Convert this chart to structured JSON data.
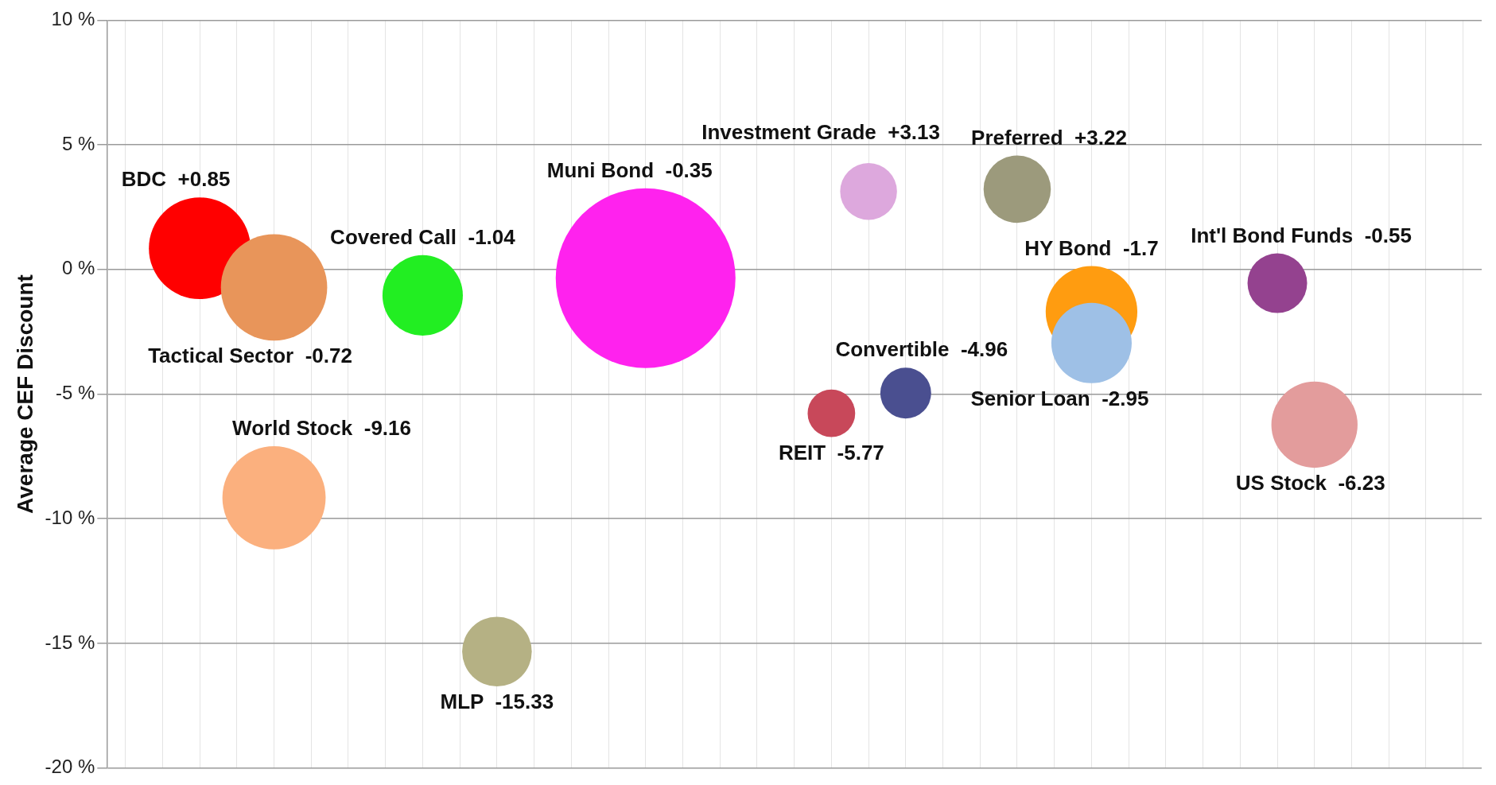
{
  "chart_data": {
    "type": "bubble",
    "ylabel": "Average CEF Discount",
    "categories": [
      null,
      null,
      null,
      null,
      null,
      null,
      null,
      null,
      null,
      null,
      null,
      null,
      null,
      null,
      null,
      null,
      null,
      null,
      null,
      null,
      null,
      null,
      null,
      null,
      null,
      null,
      null,
      null,
      null,
      null,
      null,
      null,
      null,
      null,
      null,
      null,
      null
    ],
    "ylim": [
      -20,
      10
    ],
    "yticks": [
      {
        "value": -20,
        "label": "-20 %"
      },
      {
        "value": -15,
        "label": "-15 %"
      },
      {
        "value": -10,
        "label": "-10 %"
      },
      {
        "value": -5,
        "label": "-5 %"
      },
      {
        "value": 0,
        "label": "0 %"
      },
      {
        "value": 5,
        "label": "5 %"
      },
      {
        "value": 10,
        "label": "10 %"
      }
    ],
    "grid": true,
    "tick_labels": "y",
    "legend": false,
    "series": [
      {
        "name": "BDC",
        "color": "#ff0000",
        "values": [
          null,
          null,
          0.85,
          null,
          null,
          null,
          null,
          null,
          null,
          null,
          null,
          null,
          null,
          null,
          null,
          null,
          null,
          null,
          null,
          null,
          null,
          null,
          null,
          null,
          null,
          null,
          null,
          null,
          null,
          null,
          null,
          null,
          null,
          null,
          null,
          null,
          null
        ],
        "sizes": [
          null,
          null,
          0.32,
          null,
          null,
          null,
          null,
          null,
          null,
          null,
          null,
          null,
          null,
          null,
          null,
          null,
          null,
          null,
          null,
          null,
          null,
          null,
          null,
          null,
          null,
          null,
          null,
          null,
          null,
          null,
          null,
          null,
          null,
          null,
          null,
          null,
          null
        ],
        "value_labels": [
          null,
          null,
          "+0.85",
          null,
          null,
          null,
          null,
          null,
          null,
          null,
          null,
          null,
          null,
          null,
          null,
          null,
          null,
          null,
          null,
          null,
          null,
          null,
          null,
          null,
          null,
          null,
          null,
          null,
          null,
          null,
          null,
          null,
          null,
          null,
          null,
          null,
          null
        ]
      },
      {
        "name": "Tactical Sector",
        "color": "#e8955a",
        "values": [
          null,
          null,
          null,
          null,
          -0.72,
          null,
          null,
          null,
          null,
          null,
          null,
          null,
          null,
          null,
          null,
          null,
          null,
          null,
          null,
          null,
          null,
          null,
          null,
          null,
          null,
          null,
          null,
          null,
          null,
          null,
          null,
          null,
          null,
          null,
          null,
          null,
          null
        ],
        "sizes": [
          null,
          null,
          null,
          null,
          0.35,
          null,
          null,
          null,
          null,
          null,
          null,
          null,
          null,
          null,
          null,
          null,
          null,
          null,
          null,
          null,
          null,
          null,
          null,
          null,
          null,
          null,
          null,
          null,
          null,
          null,
          null,
          null,
          null,
          null,
          null,
          null,
          null
        ],
        "value_labels": [
          null,
          null,
          null,
          null,
          "-0.72",
          null,
          null,
          null,
          null,
          null,
          null,
          null,
          null,
          null,
          null,
          null,
          null,
          null,
          null,
          null,
          null,
          null,
          null,
          null,
          null,
          null,
          null,
          null,
          null,
          null,
          null,
          null,
          null,
          null,
          null,
          null,
          null
        ]
      },
      {
        "name": "World Stock",
        "color": "#fbb07e",
        "values": [
          null,
          null,
          null,
          null,
          -9.16,
          null,
          null,
          null,
          null,
          null,
          null,
          null,
          null,
          null,
          null,
          null,
          null,
          null,
          null,
          null,
          null,
          null,
          null,
          null,
          null,
          null,
          null,
          null,
          null,
          null,
          null,
          null,
          null,
          null,
          null,
          null,
          null
        ],
        "sizes": [
          null,
          null,
          null,
          null,
          0.33,
          null,
          null,
          null,
          null,
          null,
          null,
          null,
          null,
          null,
          null,
          null,
          null,
          null,
          null,
          null,
          null,
          null,
          null,
          null,
          null,
          null,
          null,
          null,
          null,
          null,
          null,
          null,
          null,
          null,
          null,
          null,
          null
        ],
        "value_labels": [
          null,
          null,
          null,
          null,
          "-9.16",
          null,
          null,
          null,
          null,
          null,
          null,
          null,
          null,
          null,
          null,
          null,
          null,
          null,
          null,
          null,
          null,
          null,
          null,
          null,
          null,
          null,
          null,
          null,
          null,
          null,
          null,
          null,
          null,
          null,
          null,
          null,
          null
        ]
      },
      {
        "name": "Covered Call",
        "color": "#22ee22",
        "values": [
          null,
          null,
          null,
          null,
          null,
          null,
          null,
          null,
          -1.04,
          null,
          null,
          null,
          null,
          null,
          null,
          null,
          null,
          null,
          null,
          null,
          null,
          null,
          null,
          null,
          null,
          null,
          null,
          null,
          null,
          null,
          null,
          null,
          null,
          null,
          null,
          null,
          null
        ],
        "sizes": [
          null,
          null,
          null,
          null,
          null,
          null,
          null,
          null,
          0.2,
          null,
          null,
          null,
          null,
          null,
          null,
          null,
          null,
          null,
          null,
          null,
          null,
          null,
          null,
          null,
          null,
          null,
          null,
          null,
          null,
          null,
          null,
          null,
          null,
          null,
          null,
          null,
          null
        ],
        "value_labels": [
          null,
          null,
          null,
          null,
          null,
          null,
          null,
          null,
          "-1.04",
          null,
          null,
          null,
          null,
          null,
          null,
          null,
          null,
          null,
          null,
          null,
          null,
          null,
          null,
          null,
          null,
          null,
          null,
          null,
          null,
          null,
          null,
          null,
          null,
          null,
          null,
          null,
          null
        ]
      },
      {
        "name": "MLP",
        "color": "#b5b184",
        "values": [
          null,
          null,
          null,
          null,
          null,
          null,
          null,
          null,
          null,
          null,
          -15.33,
          null,
          null,
          null,
          null,
          null,
          null,
          null,
          null,
          null,
          null,
          null,
          null,
          null,
          null,
          null,
          null,
          null,
          null,
          null,
          null,
          null,
          null,
          null,
          null,
          null,
          null
        ],
        "sizes": [
          null,
          null,
          null,
          null,
          null,
          null,
          null,
          null,
          null,
          null,
          0.15,
          null,
          null,
          null,
          null,
          null,
          null,
          null,
          null,
          null,
          null,
          null,
          null,
          null,
          null,
          null,
          null,
          null,
          null,
          null,
          null,
          null,
          null,
          null,
          null,
          null,
          null
        ],
        "value_labels": [
          null,
          null,
          null,
          null,
          null,
          null,
          null,
          null,
          null,
          null,
          "-15.33",
          null,
          null,
          null,
          null,
          null,
          null,
          null,
          null,
          null,
          null,
          null,
          null,
          null,
          null,
          null,
          null,
          null,
          null,
          null,
          null,
          null,
          null,
          null,
          null,
          null,
          null
        ]
      },
      {
        "name": "Muni Bond",
        "color": "#ff22ee",
        "values": [
          null,
          null,
          null,
          null,
          null,
          null,
          null,
          null,
          null,
          null,
          null,
          null,
          null,
          null,
          -0.35,
          null,
          null,
          null,
          null,
          null,
          null,
          null,
          null,
          null,
          null,
          null,
          null,
          null,
          null,
          null,
          null,
          null,
          null,
          null,
          null,
          null,
          null
        ],
        "sizes": [
          null,
          null,
          null,
          null,
          null,
          null,
          null,
          null,
          null,
          null,
          null,
          null,
          null,
          null,
          1,
          null,
          null,
          null,
          null,
          null,
          null,
          null,
          null,
          null,
          null,
          null,
          null,
          null,
          null,
          null,
          null,
          null,
          null,
          null,
          null,
          null,
          null
        ],
        "value_labels": [
          null,
          null,
          null,
          null,
          null,
          null,
          null,
          null,
          null,
          null,
          null,
          null,
          null,
          null,
          "-0.35",
          null,
          null,
          null,
          null,
          null,
          null,
          null,
          null,
          null,
          null,
          null,
          null,
          null,
          null,
          null,
          null,
          null,
          null,
          null,
          null,
          null,
          null
        ]
      },
      {
        "name": "REIT",
        "color": "#c8485a",
        "values": [
          null,
          null,
          null,
          null,
          null,
          null,
          null,
          null,
          null,
          null,
          null,
          null,
          null,
          null,
          null,
          null,
          null,
          null,
          null,
          -5.77,
          null,
          null,
          null,
          null,
          null,
          null,
          null,
          null,
          null,
          null,
          null,
          null,
          null,
          null,
          null,
          null,
          null
        ],
        "sizes": [
          null,
          null,
          null,
          null,
          null,
          null,
          null,
          null,
          null,
          null,
          null,
          null,
          null,
          null,
          null,
          null,
          null,
          null,
          null,
          0.07,
          null,
          null,
          null,
          null,
          null,
          null,
          null,
          null,
          null,
          null,
          null,
          null,
          null,
          null,
          null,
          null,
          null
        ],
        "value_labels": [
          null,
          null,
          null,
          null,
          null,
          null,
          null,
          null,
          null,
          null,
          null,
          null,
          null,
          null,
          null,
          null,
          null,
          null,
          null,
          "-5.77",
          null,
          null,
          null,
          null,
          null,
          null,
          null,
          null,
          null,
          null,
          null,
          null,
          null,
          null,
          null,
          null,
          null
        ]
      },
      {
        "name": "Investment Grade",
        "color": "#dda8dd",
        "values": [
          null,
          null,
          null,
          null,
          null,
          null,
          null,
          null,
          null,
          null,
          null,
          null,
          null,
          null,
          null,
          null,
          null,
          null,
          null,
          null,
          3.13,
          null,
          null,
          null,
          null,
          null,
          null,
          null,
          null,
          null,
          null,
          null,
          null,
          null,
          null,
          null,
          null
        ],
        "sizes": [
          null,
          null,
          null,
          null,
          null,
          null,
          null,
          null,
          null,
          null,
          null,
          null,
          null,
          null,
          null,
          null,
          null,
          null,
          null,
          null,
          0.1,
          null,
          null,
          null,
          null,
          null,
          null,
          null,
          null,
          null,
          null,
          null,
          null,
          null,
          null,
          null,
          null
        ],
        "value_labels": [
          null,
          null,
          null,
          null,
          null,
          null,
          null,
          null,
          null,
          null,
          null,
          null,
          null,
          null,
          null,
          null,
          null,
          null,
          null,
          null,
          "+3.13",
          null,
          null,
          null,
          null,
          null,
          null,
          null,
          null,
          null,
          null,
          null,
          null,
          null,
          null,
          null,
          null
        ]
      },
      {
        "name": "Convertible",
        "color": "#4a4f90",
        "values": [
          null,
          null,
          null,
          null,
          null,
          null,
          null,
          null,
          null,
          null,
          null,
          null,
          null,
          null,
          null,
          null,
          null,
          null,
          null,
          null,
          null,
          -4.96,
          null,
          null,
          null,
          null,
          null,
          null,
          null,
          null,
          null,
          null,
          null,
          null,
          null,
          null,
          null
        ],
        "sizes": [
          null,
          null,
          null,
          null,
          null,
          null,
          null,
          null,
          null,
          null,
          null,
          null,
          null,
          null,
          null,
          null,
          null,
          null,
          null,
          null,
          null,
          0.08,
          null,
          null,
          null,
          null,
          null,
          null,
          null,
          null,
          null,
          null,
          null,
          null,
          null,
          null,
          null
        ],
        "value_labels": [
          null,
          null,
          null,
          null,
          null,
          null,
          null,
          null,
          null,
          null,
          null,
          null,
          null,
          null,
          null,
          null,
          null,
          null,
          null,
          null,
          null,
          "-4.96",
          null,
          null,
          null,
          null,
          null,
          null,
          null,
          null,
          null,
          null,
          null,
          null,
          null,
          null,
          null
        ]
      },
      {
        "name": "Preferred",
        "color": "#9c9a7c",
        "values": [
          null,
          null,
          null,
          null,
          null,
          null,
          null,
          null,
          null,
          null,
          null,
          null,
          null,
          null,
          null,
          null,
          null,
          null,
          null,
          null,
          null,
          null,
          null,
          null,
          3.22,
          null,
          null,
          null,
          null,
          null,
          null,
          null,
          null,
          null,
          null,
          null,
          null
        ],
        "sizes": [
          null,
          null,
          null,
          null,
          null,
          null,
          null,
          null,
          null,
          null,
          null,
          null,
          null,
          null,
          null,
          null,
          null,
          null,
          null,
          null,
          null,
          null,
          null,
          null,
          0.14,
          null,
          null,
          null,
          null,
          null,
          null,
          null,
          null,
          null,
          null,
          null,
          null
        ],
        "value_labels": [
          null,
          null,
          null,
          null,
          null,
          null,
          null,
          null,
          null,
          null,
          null,
          null,
          null,
          null,
          null,
          null,
          null,
          null,
          null,
          null,
          null,
          null,
          null,
          null,
          "+3.22",
          null,
          null,
          null,
          null,
          null,
          null,
          null,
          null,
          null,
          null,
          null,
          null
        ]
      },
      {
        "name": "HY Bond",
        "color": "#ff9c10",
        "values": [
          null,
          null,
          null,
          null,
          null,
          null,
          null,
          null,
          null,
          null,
          null,
          null,
          null,
          null,
          null,
          null,
          null,
          null,
          null,
          null,
          null,
          null,
          null,
          null,
          null,
          null,
          -1.7,
          null,
          null,
          null,
          null,
          null,
          null,
          null,
          null,
          null,
          null
        ],
        "sizes": [
          null,
          null,
          null,
          null,
          null,
          null,
          null,
          null,
          null,
          null,
          null,
          null,
          null,
          null,
          null,
          null,
          null,
          null,
          null,
          null,
          null,
          null,
          null,
          null,
          null,
          null,
          0.26,
          null,
          null,
          null,
          null,
          null,
          null,
          null,
          null,
          null,
          null
        ],
        "value_labels": [
          null,
          null,
          null,
          null,
          null,
          null,
          null,
          null,
          null,
          null,
          null,
          null,
          null,
          null,
          null,
          null,
          null,
          null,
          null,
          null,
          null,
          null,
          null,
          null,
          null,
          null,
          "-1.7",
          null,
          null,
          null,
          null,
          null,
          null,
          null,
          null,
          null,
          null
        ]
      },
      {
        "name": "Senior Loan",
        "color": "#9ec0e6",
        "values": [
          null,
          null,
          null,
          null,
          null,
          null,
          null,
          null,
          null,
          null,
          null,
          null,
          null,
          null,
          null,
          null,
          null,
          null,
          null,
          null,
          null,
          null,
          null,
          null,
          null,
          null,
          -2.95,
          null,
          null,
          null,
          null,
          null,
          null,
          null,
          null,
          null,
          null
        ],
        "sizes": [
          null,
          null,
          null,
          null,
          null,
          null,
          null,
          null,
          null,
          null,
          null,
          null,
          null,
          null,
          null,
          null,
          null,
          null,
          null,
          null,
          null,
          null,
          null,
          null,
          null,
          null,
          0.2,
          null,
          null,
          null,
          null,
          null,
          null,
          null,
          null,
          null,
          null
        ],
        "value_labels": [
          null,
          null,
          null,
          null,
          null,
          null,
          null,
          null,
          null,
          null,
          null,
          null,
          null,
          null,
          null,
          null,
          null,
          null,
          null,
          null,
          null,
          null,
          null,
          null,
          null,
          null,
          "-2.95",
          null,
          null,
          null,
          null,
          null,
          null,
          null,
          null,
          null,
          null
        ]
      },
      {
        "name": "Int'l Bond Funds",
        "color": "#94428f",
        "values": [
          null,
          null,
          null,
          null,
          null,
          null,
          null,
          null,
          null,
          null,
          null,
          null,
          null,
          null,
          null,
          null,
          null,
          null,
          null,
          null,
          null,
          null,
          null,
          null,
          null,
          null,
          null,
          null,
          null,
          null,
          null,
          -0.55,
          null,
          null,
          null,
          null,
          null
        ],
        "sizes": [
          null,
          null,
          null,
          null,
          null,
          null,
          null,
          null,
          null,
          null,
          null,
          null,
          null,
          null,
          null,
          null,
          null,
          null,
          null,
          null,
          null,
          null,
          null,
          null,
          null,
          null,
          null,
          null,
          null,
          null,
          null,
          0.11,
          null,
          null,
          null,
          null,
          null
        ],
        "value_labels": [
          null,
          null,
          null,
          null,
          null,
          null,
          null,
          null,
          null,
          null,
          null,
          null,
          null,
          null,
          null,
          null,
          null,
          null,
          null,
          null,
          null,
          null,
          null,
          null,
          null,
          null,
          null,
          null,
          null,
          null,
          null,
          "-0.55",
          null,
          null,
          null,
          null,
          null
        ]
      },
      {
        "name": "US Stock",
        "color": "#e39c9c",
        "values": [
          null,
          null,
          null,
          null,
          null,
          null,
          null,
          null,
          null,
          null,
          null,
          null,
          null,
          null,
          null,
          null,
          null,
          null,
          null,
          null,
          null,
          null,
          null,
          null,
          null,
          null,
          null,
          null,
          null,
          null,
          null,
          null,
          -6.23,
          null,
          null,
          null,
          null
        ],
        "sizes": [
          null,
          null,
          null,
          null,
          null,
          null,
          null,
          null,
          null,
          null,
          null,
          null,
          null,
          null,
          null,
          null,
          null,
          null,
          null,
          null,
          null,
          null,
          null,
          null,
          null,
          null,
          null,
          null,
          null,
          null,
          null,
          null,
          0.23,
          null,
          null,
          null,
          null
        ],
        "value_labels": [
          null,
          null,
          null,
          null,
          null,
          null,
          null,
          null,
          null,
          null,
          null,
          null,
          null,
          null,
          null,
          null,
          null,
          null,
          null,
          null,
          null,
          null,
          null,
          null,
          null,
          null,
          null,
          null,
          null,
          null,
          null,
          null,
          "-6.23",
          null,
          null,
          null,
          null
        ]
      }
    ]
  }
}
